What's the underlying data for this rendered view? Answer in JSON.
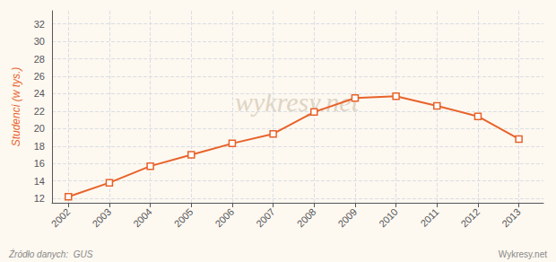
{
  "chart_data": {
    "type": "line",
    "x": [
      2002,
      2003,
      2004,
      2005,
      2006,
      2007,
      2008,
      2009,
      2010,
      2011,
      2012,
      2013
    ],
    "values": [
      12.2,
      13.8,
      15.7,
      17.0,
      18.3,
      19.4,
      21.9,
      23.5,
      23.7,
      22.6,
      21.4,
      18.8
    ],
    "color": "#e8622a",
    "marker": "square",
    "ylabel": "Studenci (w tys.)",
    "xlim": [
      2001.6,
      2013.6
    ],
    "xticks": [
      2002,
      2003,
      2004,
      2005,
      2006,
      2007,
      2008,
      2009,
      2010,
      2011,
      2012,
      2013
    ],
    "ylim": [
      11.5,
      33.5
    ],
    "yticks": [
      12,
      14,
      16,
      18,
      20,
      22,
      24,
      26,
      28,
      30,
      32
    ],
    "grid": true,
    "watermark": "wykresy.net",
    "source": "Źródło danych:  GUS",
    "footer": "Wykresy.net"
  }
}
